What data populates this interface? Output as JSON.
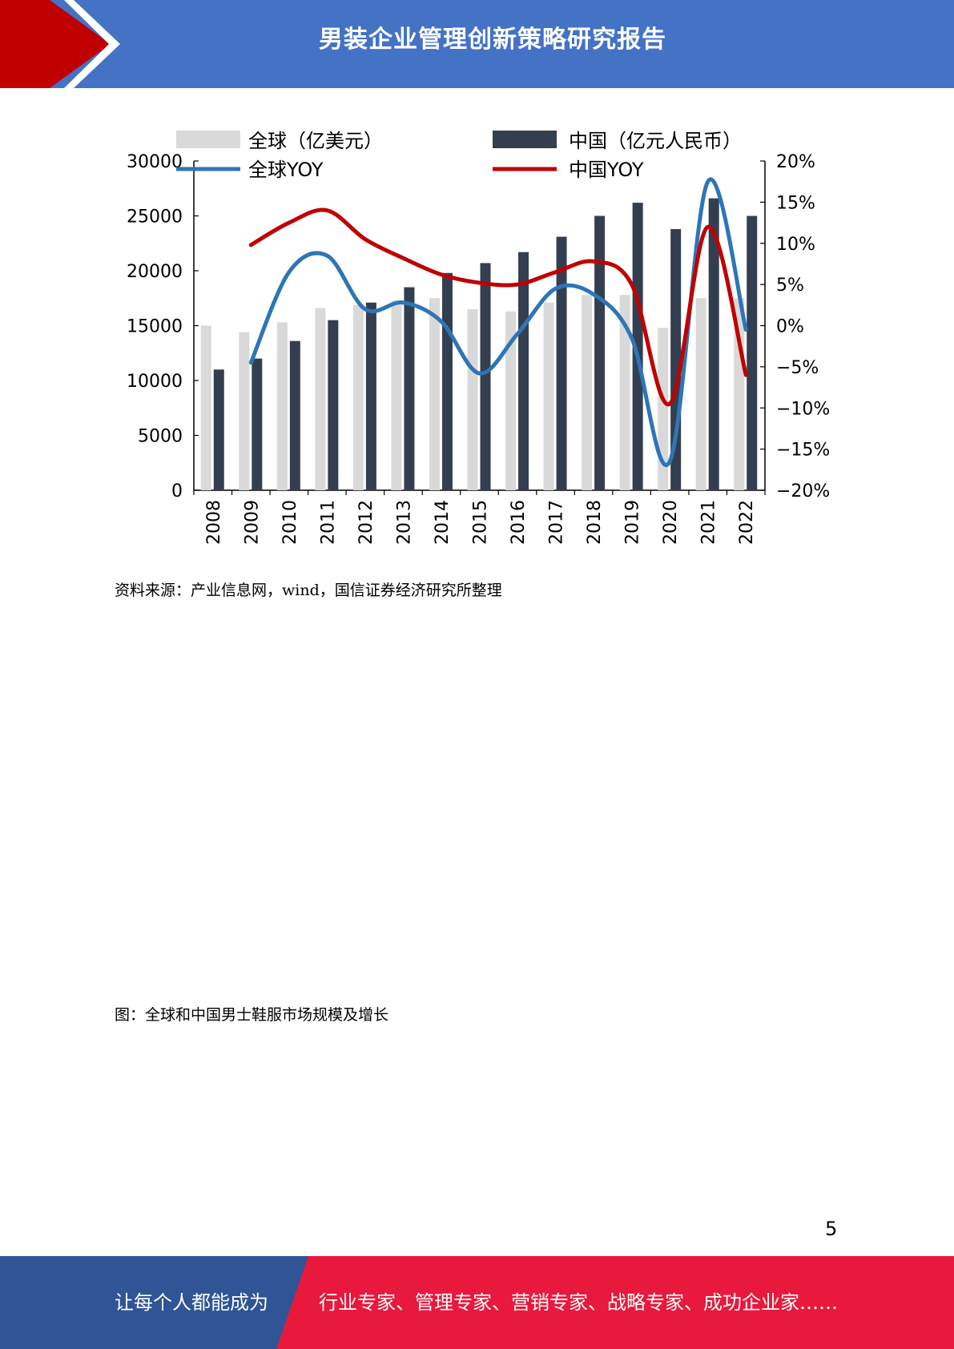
{
  "header": {
    "title": "男装企业管理创新策略研究报告"
  },
  "chart_data": {
    "type": "bar",
    "categories": [
      "2008",
      "2009",
      "2010",
      "2011",
      "2012",
      "2013",
      "2014",
      "2015",
      "2016",
      "2017",
      "2018",
      "2019",
      "2020",
      "2021",
      "2022"
    ],
    "legend": {
      "global_bar": "全球（亿美元）",
      "china_bar": "中国（亿元人民币）",
      "global_yoy": "全球YOY",
      "china_yoy": "中国YOY"
    },
    "series": [
      {
        "name": "全球（亿美元）",
        "kind": "bar",
        "axis": "left",
        "color": "#d9d9d9",
        "values": [
          15000,
          14400,
          15300,
          16600,
          16900,
          17300,
          17500,
          16500,
          16300,
          17100,
          17800,
          17800,
          14800,
          17500,
          17500
        ]
      },
      {
        "name": "中国（亿元人民币）",
        "kind": "bar",
        "axis": "left",
        "color": "#333f50",
        "values": [
          11000,
          12000,
          13600,
          15500,
          17100,
          18500,
          19800,
          20700,
          21700,
          23100,
          25000,
          26200,
          23800,
          26600,
          25000
        ]
      },
      {
        "name": "全球YOY",
        "kind": "line",
        "axis": "right",
        "color": "#2e75b6",
        "x": [
          "2009",
          "2010",
          "2011",
          "2012",
          "2013",
          "2014",
          "2015",
          "2016",
          "2017",
          "2018",
          "2019",
          "2020",
          "2021",
          "2022"
        ],
        "values": [
          -4.5,
          6.5,
          8.5,
          2.0,
          2.8,
          0.5,
          -5.8,
          -1.0,
          4.5,
          3.8,
          -1.5,
          -16.5,
          17.5,
          -0.5
        ]
      },
      {
        "name": "中国YOY",
        "kind": "line",
        "axis": "right",
        "color": "#c00000",
        "x": [
          "2009",
          "2010",
          "2011",
          "2012",
          "2013",
          "2014",
          "2015",
          "2016",
          "2017",
          "2018",
          "2019",
          "2020",
          "2021",
          "2022"
        ],
        "values": [
          9.8,
          12.5,
          14.0,
          10.5,
          8.2,
          6.2,
          5.2,
          5.0,
          6.5,
          7.8,
          5.0,
          -9.5,
          12.0,
          -6.0
        ]
      }
    ],
    "y_left": {
      "min": 0,
      "max": 30000,
      "ticks": [
        0,
        5000,
        10000,
        15000,
        20000,
        25000,
        30000
      ]
    },
    "y_right": {
      "min": -20,
      "max": 20,
      "ticks": [
        "-20%",
        "-15%",
        "-10%",
        "-5%",
        "0%",
        "5%",
        "10%",
        "15%",
        "20%"
      ]
    },
    "legend_position": "top",
    "grid": false
  },
  "source": "资料来源：产业信息网，wind，国信证券经济研究所整理",
  "caption": "图：全球和中国男士鞋服市场规模及增长",
  "page_number": "5",
  "footer": {
    "left": "让每个人都能成为",
    "right": "行业专家、管理专家、营销专家、战略专家、成功企业家……"
  }
}
